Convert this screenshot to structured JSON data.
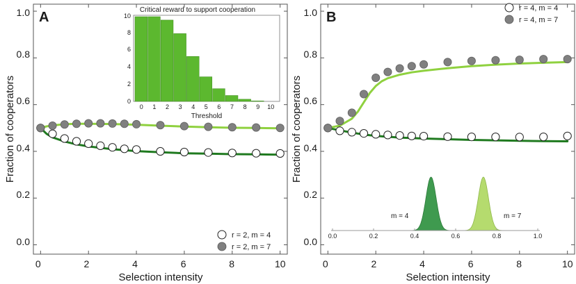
{
  "colors": {
    "dark_green": "#1f7a1f",
    "light_green": "#8fd13f",
    "bar_green": "#5cb82f",
    "marker_gray": "#808080",
    "dist_dark": "#3f9a4f",
    "dist_light": "#b5db6e",
    "axis": "#555555"
  },
  "chart_data": [
    {
      "panel_label": "A",
      "type": "scatter",
      "xlabel": "Selection intensity",
      "ylabel": "Fraction of cooperators",
      "xlim": [
        -0.3,
        10.3
      ],
      "ylim": [
        -0.04,
        1.03
      ],
      "xticks": [
        "0",
        "2",
        "4",
        "6",
        "8",
        "10"
      ],
      "yticks": [
        "0.0",
        "0.2",
        "0.4",
        "0.6",
        "0.8",
        "1.0"
      ],
      "legend_position": "bottom-right",
      "series": [
        {
          "name": "r = 2, m = 4",
          "marker": "open",
          "x": [
            0,
            0.5,
            1,
            1.5,
            2,
            2.5,
            3,
            3.5,
            4,
            5,
            6,
            7,
            8,
            9,
            10
          ],
          "y": [
            0.5,
            0.475,
            0.455,
            0.443,
            0.433,
            0.424,
            0.417,
            0.411,
            0.408,
            0.4,
            0.397,
            0.395,
            0.393,
            0.392,
            0.391
          ],
          "fit_x": [
            0,
            0.25,
            0.5,
            1,
            1.5,
            2,
            3,
            4,
            5,
            6,
            7,
            8,
            9,
            10
          ],
          "fit_y": [
            0.5,
            0.475,
            0.46,
            0.442,
            0.43,
            0.421,
            0.409,
            0.401,
            0.396,
            0.392,
            0.39,
            0.388,
            0.387,
            0.386
          ]
        },
        {
          "name": "r = 2, m = 7",
          "marker": "filled",
          "x": [
            0,
            0.5,
            1,
            1.5,
            2,
            2.5,
            3,
            3.5,
            4,
            5,
            6,
            7,
            8,
            9,
            10
          ],
          "y": [
            0.5,
            0.51,
            0.515,
            0.518,
            0.52,
            0.52,
            0.519,
            0.518,
            0.516,
            0.512,
            0.508,
            0.505,
            0.503,
            0.502,
            0.5
          ],
          "fit_x": [
            0,
            0.25,
            0.5,
            1,
            1.5,
            2,
            3,
            4,
            5,
            6,
            7,
            8,
            9,
            10
          ],
          "fit_y": [
            0.5,
            0.507,
            0.511,
            0.516,
            0.518,
            0.518,
            0.517,
            0.514,
            0.51,
            0.506,
            0.503,
            0.501,
            0.5,
            0.499
          ]
        }
      ],
      "inset": {
        "type": "bar",
        "title": "Critical reward to support cooperation",
        "xlabel": "Threshold",
        "categories": [
          "0",
          "1",
          "2",
          "3",
          "4",
          "5",
          "6",
          "7",
          "8",
          "9",
          "10"
        ],
        "values": [
          10,
          10,
          9.6,
          8,
          5.3,
          2.9,
          1.5,
          0.7,
          0.25,
          0.06,
          0
        ],
        "ylim": [
          0,
          10
        ],
        "yticks": [
          "0",
          "2",
          "4",
          "6",
          "8",
          "10"
        ]
      }
    },
    {
      "panel_label": "B",
      "type": "scatter",
      "xlabel": "Selection intensity",
      "ylabel": "Fraction of cooperators",
      "xlim": [
        -0.3,
        10.3
      ],
      "ylim": [
        -0.04,
        1.03
      ],
      "xticks": [
        "0",
        "2",
        "4",
        "6",
        "8",
        "10"
      ],
      "yticks": [
        "0.0",
        "0.2",
        "0.4",
        "0.6",
        "0.8",
        "1.0"
      ],
      "legend_position": "top-right",
      "series": [
        {
          "name": "r = 4, m = 4",
          "marker": "open",
          "x": [
            0,
            0.5,
            1,
            1.5,
            2,
            2.5,
            3,
            3.5,
            4,
            5,
            6,
            7,
            8,
            9,
            10
          ],
          "y": [
            0.5,
            0.488,
            0.482,
            0.477,
            0.473,
            0.47,
            0.468,
            0.466,
            0.465,
            0.463,
            0.462,
            0.462,
            0.461,
            0.462,
            0.466
          ],
          "fit_x": [
            0,
            0.5,
            1,
            1.5,
            2,
            3,
            4,
            5,
            6,
            7,
            8,
            9,
            10
          ],
          "fit_y": [
            0.5,
            0.49,
            0.48,
            0.472,
            0.466,
            0.459,
            0.455,
            0.452,
            0.449,
            0.447,
            0.445,
            0.444,
            0.443
          ]
        },
        {
          "name": "r = 4, m = 7",
          "marker": "filled",
          "x": [
            0,
            0.5,
            1,
            1.5,
            2,
            2.5,
            3,
            3.5,
            4,
            5,
            6,
            7,
            8,
            9,
            10
          ],
          "y": [
            0.5,
            0.53,
            0.565,
            0.645,
            0.715,
            0.74,
            0.755,
            0.765,
            0.772,
            0.782,
            0.787,
            0.79,
            0.792,
            0.795,
            0.795
          ],
          "fit_x": [
            0,
            0.5,
            1,
            1.25,
            1.5,
            1.75,
            2,
            2.25,
            2.5,
            3,
            3.5,
            4,
            5,
            6,
            7,
            8,
            9,
            10
          ],
          "fit_y": [
            0.5,
            0.51,
            0.54,
            0.57,
            0.61,
            0.65,
            0.68,
            0.7,
            0.713,
            0.728,
            0.738,
            0.745,
            0.756,
            0.765,
            0.771,
            0.776,
            0.779,
            0.782
          ]
        }
      ],
      "inset": {
        "type": "area",
        "x_ticks": [
          "0.0",
          "0.2",
          "0.4",
          "0.6",
          "0.8",
          "1.0"
        ],
        "xlim": [
          0,
          1
        ],
        "distributions": [
          {
            "name": "m = 4",
            "mean": 0.48,
            "sd": 0.025
          },
          {
            "name": "m = 7",
            "mean": 0.735,
            "sd": 0.025
          }
        ]
      }
    }
  ]
}
